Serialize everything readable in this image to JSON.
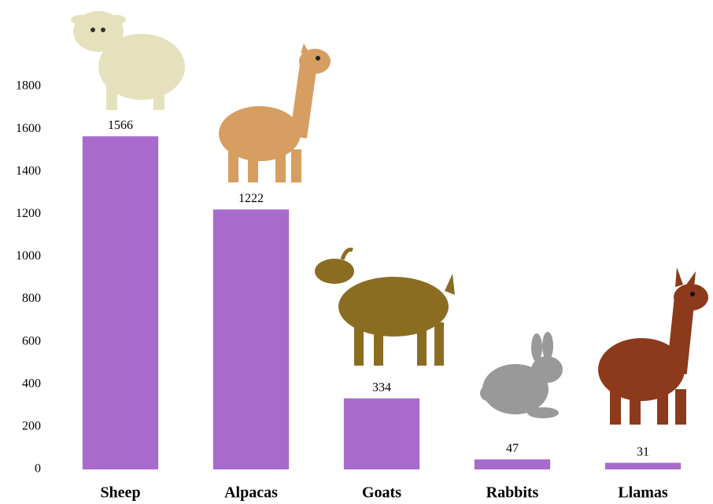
{
  "chart_data": {
    "type": "bar",
    "categories": [
      "Sheep",
      "Alpacas",
      "Goats",
      "Rabbits",
      "Llamas"
    ],
    "values": [
      1566,
      1222,
      334,
      47,
      31
    ],
    "color": "#a86bcc",
    "ylim": [
      0,
      1800
    ],
    "yticks": [
      0,
      200,
      400,
      600,
      800,
      1000,
      1200,
      1400,
      1600,
      1800
    ],
    "grid": false
  }
}
